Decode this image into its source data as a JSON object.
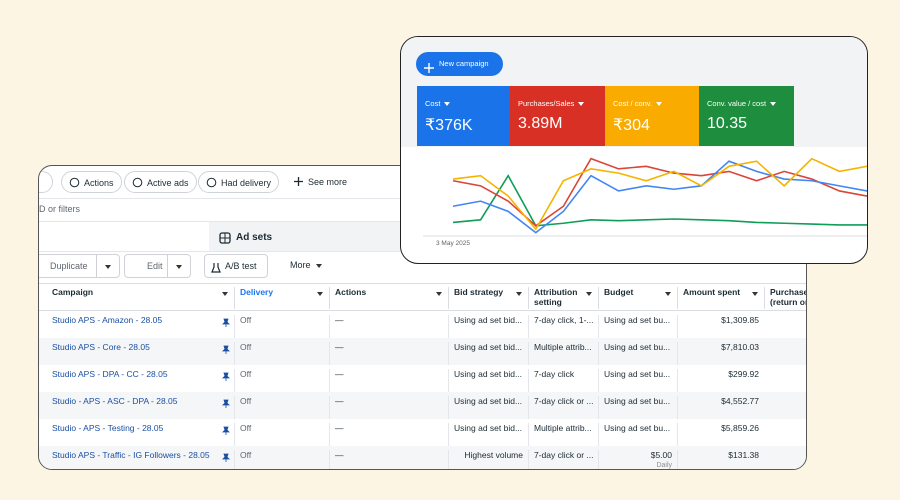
{
  "meta_ads": {
    "filter_chips": [
      "Actions",
      "Active ads",
      "Had delivery",
      "See more"
    ],
    "search_placeholder": "D or filters",
    "tab": "Ad sets",
    "toolbar": [
      "Duplicate",
      "Edit",
      "A/B test",
      "More"
    ],
    "table": {
      "columns": [
        "Campaign",
        "Delivery",
        "Actions",
        "Bid strategy",
        "Attribution setting",
        "Budget",
        "Amount spent",
        "Purchases (return on ad spend)"
      ],
      "rows": [
        [
          "Studio APS - Amazon - 28.05",
          "Off",
          "—",
          "Using ad set bid...",
          "7-day click, 1-...",
          "Using ad set bu...",
          "$1,309.85"
        ],
        [
          "Studio APS - Core - 28.05",
          "Off",
          "—",
          "Using ad set bid...",
          "Multiple attrib...",
          "Using ad set bu...",
          "$7,810.03"
        ],
        [
          "Studio APS - DPA - CC - 28.05",
          "Off",
          "—",
          "Using ad set bid...",
          "7-day click",
          "Using ad set bu...",
          "$299.92"
        ],
        [
          "Studio - APS - ASC - DPA - 28.05",
          "Off",
          "—",
          "Using ad set bid...",
          "7-day click or ...",
          "Using ad set bu...",
          "$4,552.77"
        ],
        [
          "Studio - APS - Testing - 28.05",
          "Off",
          "—",
          "Using ad set bid...",
          "Multiple attrib...",
          "Using ad set bu...",
          "$5,859.26"
        ],
        [
          "Studio APS - Traffic - IG Followers - 28.05",
          "Off",
          "—",
          "Highest volume",
          "7-day click or ...",
          {
            "amount": "$5.00",
            "period": "Daily"
          },
          "$131.38"
        ]
      ]
    }
  },
  "google_ads": {
    "button": "New campaign",
    "metrics": [
      {
        "label": "Cost",
        "value": "₹376K",
        "color": "#1a73e8"
      },
      {
        "label": "Purchases/Sales",
        "value": "3.89M",
        "color": "#d93025"
      },
      {
        "label": "Cost / conv.",
        "value": "₹304",
        "color": "#f9ab00"
      },
      {
        "label": "Conv. value / cost",
        "value": "10.35",
        "color": "#1e8e3e"
      }
    ]
  },
  "chart_data": {
    "type": "line",
    "categories": [
      "3 May 2025",
      null,
      null,
      null,
      null,
      null,
      null,
      null,
      null,
      null,
      null,
      null,
      null,
      null,
      null,
      null
    ],
    "ylim": [
      0,
      100
    ],
    "series": [
      {
        "color": "#0f9d58",
        "values": [
          16,
          19,
          71,
          12,
          15,
          19,
          18,
          19,
          20,
          19,
          18,
          16,
          15,
          14,
          13,
          13
        ]
      },
      {
        "color": "#db4437",
        "values": [
          65,
          59,
          41,
          12,
          35,
          91,
          79,
          82,
          74,
          71,
          76,
          65,
          76,
          67,
          53,
          47
        ]
      },
      {
        "color": "#4285f4",
        "values": [
          35,
          41,
          29,
          4,
          29,
          71,
          53,
          59,
          55,
          59,
          88,
          76,
          67,
          65,
          59,
          53
        ]
      },
      {
        "color": "#f4b400",
        "values": [
          67,
          71,
          47,
          8,
          65,
          79,
          74,
          65,
          76,
          59,
          82,
          88,
          59,
          91,
          76,
          82
        ]
      }
    ]
  }
}
